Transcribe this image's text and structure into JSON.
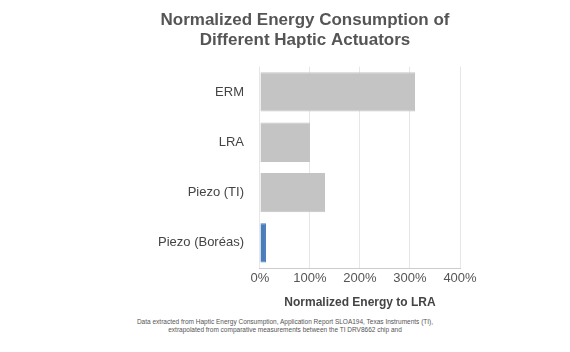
{
  "chart_data": {
    "type": "bar",
    "orientation": "horizontal",
    "title": [
      "Normalized Energy Consumption of",
      "Different Haptic Actuators"
    ],
    "x_label": "Normalized Energy to LRA",
    "categories": [
      "ERM",
      "LRA",
      "Piezo (TI)",
      "Piezo (Boréas)"
    ],
    "values": [
      310,
      100,
      130,
      12
    ],
    "colors": [
      "#c4c4c4",
      "#c4c4c4",
      "#c4c4c4",
      "#4a7ebb"
    ],
    "xlim": [
      0,
      400
    ],
    "xticks": [
      {
        "value": 0,
        "label": "0%"
      },
      {
        "value": 100,
        "label": "100%"
      },
      {
        "value": 200,
        "label": "200%"
      },
      {
        "value": 300,
        "label": "300%"
      },
      {
        "value": 400,
        "label": "400%"
      }
    ],
    "grid": true,
    "notes": [
      "Data extracted from Haptic Energy Consumption, Application Report SLOA194, Texas Instruments (TI),",
      "extrapolated from comparative measurements between the TI DRV8662 chip and"
    ]
  }
}
